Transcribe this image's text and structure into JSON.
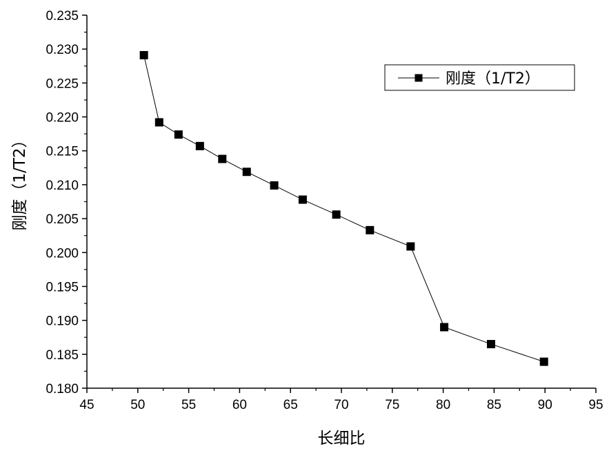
{
  "chart_data": {
    "type": "line",
    "xlabel": "长细比",
    "ylabel": "刚度（1/T2）",
    "xlim": [
      45,
      95
    ],
    "ylim": [
      0.18,
      0.235
    ],
    "x_ticks": [
      "45",
      "50",
      "55",
      "60",
      "65",
      "70",
      "75",
      "80",
      "85",
      "90",
      "95"
    ],
    "y_ticks": [
      "0.180",
      "0.185",
      "0.190",
      "0.195",
      "0.200",
      "0.205",
      "0.210",
      "0.215",
      "0.220",
      "0.225",
      "0.230",
      "0.235"
    ],
    "grid": false,
    "legend_position": "top-right",
    "series": [
      {
        "name": "刚度（1/T2）",
        "marker": "square",
        "color": "#000000",
        "x": [
          50.6,
          52.1,
          54.0,
          56.1,
          58.3,
          60.7,
          63.4,
          66.2,
          69.5,
          72.8,
          76.8,
          80.1,
          84.7,
          89.9
        ],
        "y": [
          0.2291,
          0.2192,
          0.2174,
          0.2157,
          0.2138,
          0.2119,
          0.2099,
          0.2078,
          0.2056,
          0.2033,
          0.2009,
          0.189,
          0.1865,
          0.1839
        ]
      }
    ]
  }
}
